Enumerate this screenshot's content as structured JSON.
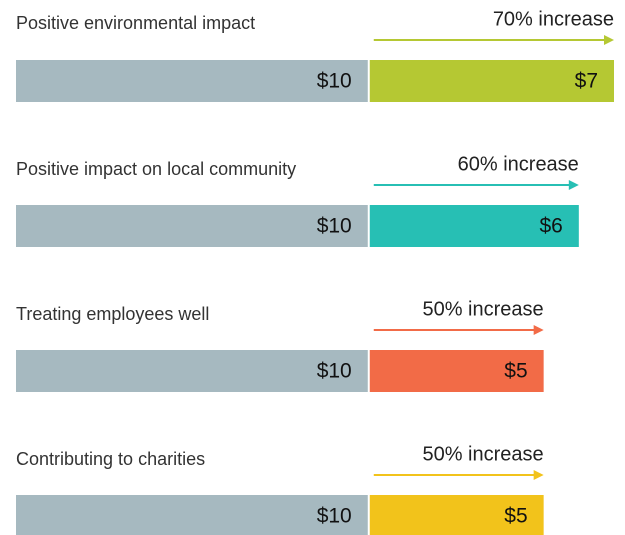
{
  "chart_data": {
    "type": "stacked-bar",
    "orientation": "horizontal",
    "categories": [
      "Positive environmental impact",
      "Positive impact on local community",
      "Treating employees well",
      "Contributing to charities"
    ],
    "series": [
      {
        "color": "#a6b9c0",
        "values": [
          10,
          10,
          10,
          10
        ],
        "value_labels": [
          "$10",
          "$10",
          "$10",
          "$10"
        ]
      },
      {
        "color": [
          "#b5c833",
          "#27bfb4",
          "#f26b47",
          "#f2c31b"
        ],
        "values": [
          7,
          6,
          5,
          5
        ],
        "value_labels": [
          "$7",
          "$6",
          "$5",
          "$5"
        ]
      }
    ],
    "annotations": [
      "70% increase",
      "60% increase",
      "50% increase",
      "50% increase"
    ]
  }
}
